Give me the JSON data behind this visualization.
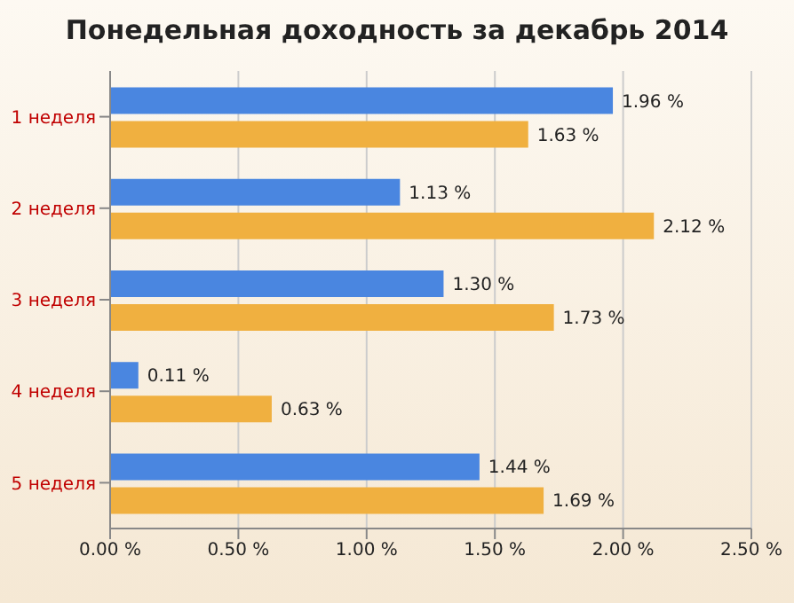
{
  "chart_data": {
    "type": "bar",
    "orientation": "horizontal",
    "title": "Понедельная доходность за декабрь 2014",
    "categories": [
      "1 неделя",
      "2 неделя",
      "3 неделя",
      "4 неделя",
      "5 неделя"
    ],
    "series": [
      {
        "color": "#4a86e0",
        "values": [
          1.96,
          1.13,
          1.3,
          0.11,
          1.44
        ],
        "value_labels": [
          "1.96 %",
          "1.13 %",
          "1.30 %",
          "0.11 %",
          "1.44 %"
        ]
      },
      {
        "color": "#f0b040",
        "values": [
          1.63,
          2.12,
          1.73,
          0.63,
          1.69
        ],
        "value_labels": [
          "1.63 %",
          "2.12 %",
          "1.73 %",
          "0.63 %",
          "1.69 %"
        ]
      }
    ],
    "xlim": [
      0,
      2.5
    ],
    "xticks": [
      {
        "value": 0,
        "label": "0.00 %"
      },
      {
        "value": 0.5,
        "label": "0.50 %"
      },
      {
        "value": 1,
        "label": "1.00 %"
      },
      {
        "value": 1.5,
        "label": "1.50 %"
      },
      {
        "value": 2,
        "label": "2.00 %"
      },
      {
        "value": 2.5,
        "label": "2.50 %"
      }
    ],
    "grid": "x"
  }
}
